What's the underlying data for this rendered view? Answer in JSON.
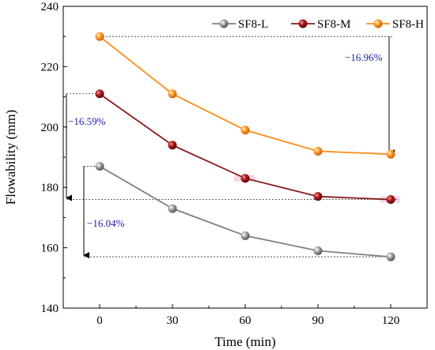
{
  "chart_data": {
    "type": "line",
    "title": "",
    "xlabel": "Time (min)",
    "ylabel": "Flowability (mm)",
    "x": [
      0,
      30,
      60,
      90,
      120
    ],
    "xticks": [
      "0",
      "30",
      "60",
      "90",
      "120"
    ],
    "xlim": [
      -15,
      135
    ],
    "yticks": [
      "140",
      "160",
      "180",
      "200",
      "220",
      "240"
    ],
    "ylim": [
      140,
      240
    ],
    "grid": false,
    "legend_position": "top-right",
    "series": [
      {
        "name": "SF8-L",
        "values": [
          187,
          173,
          164,
          159,
          157
        ],
        "color": "#808080",
        "marker_color": "#9a9a9a"
      },
      {
        "name": "SF8-M",
        "values": [
          211,
          194,
          183,
          177,
          176
        ],
        "color": "#8b1a1a",
        "marker_color": "#a01818"
      },
      {
        "name": "SF8-H",
        "values": [
          230,
          211,
          199,
          192,
          191
        ],
        "color": "#ff8c1a",
        "marker_color": "#ff9422"
      }
    ],
    "annotations": [
      {
        "text": "−16.96%",
        "series": "SF8-H"
      },
      {
        "text": "−16.59%",
        "series": "SF8-M"
      },
      {
        "text": "−16.04%",
        "series": "SF8-L"
      }
    ]
  }
}
